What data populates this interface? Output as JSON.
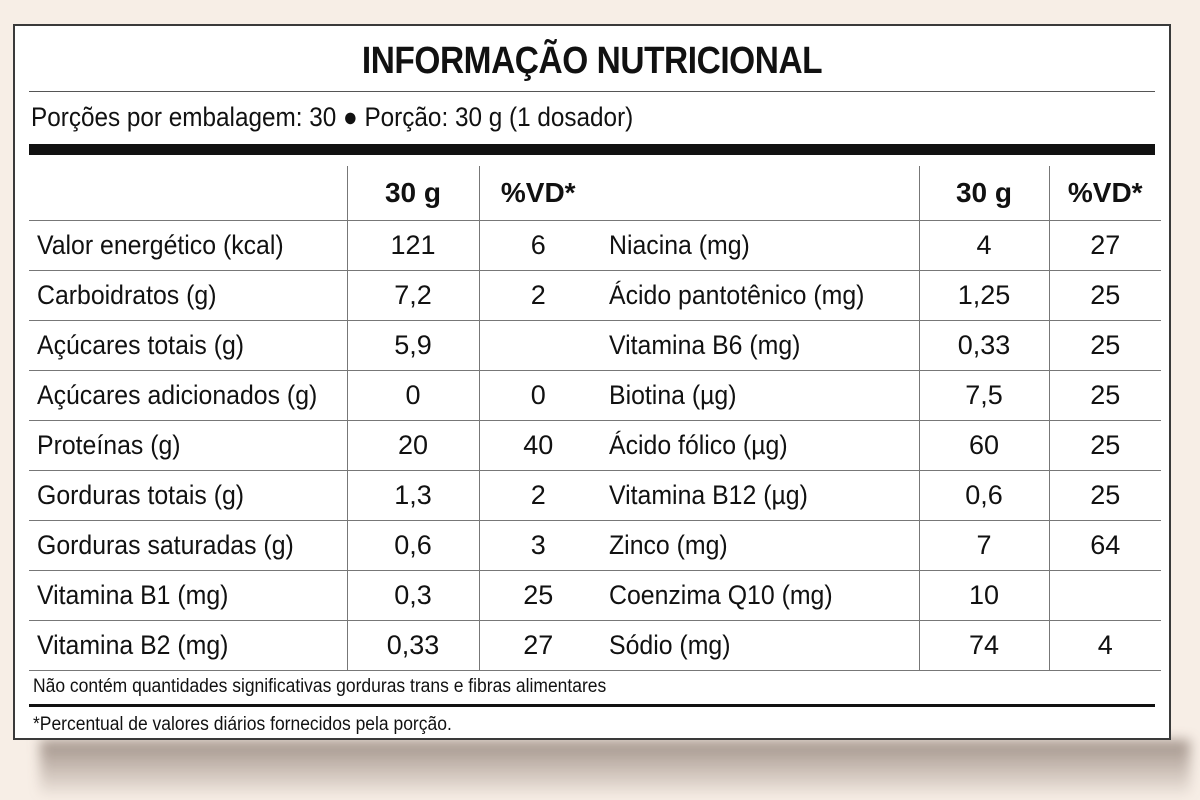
{
  "title": "INFORMAÇÃO NUTRICIONAL",
  "portion_info": "Porções por embalagem: 30 ● Porção: 30 g (1 dosador)",
  "header": {
    "amount": "30 g",
    "dv": "%VD*"
  },
  "left_rows": [
    {
      "name": "Valor energético (kcal)",
      "amount": "121",
      "dv": "6"
    },
    {
      "name": "Carboidratos (g)",
      "amount": "7,2",
      "dv": "2"
    },
    {
      "name": "Açúcares totais (g)",
      "amount": "5,9",
      "dv": ""
    },
    {
      "name": "Açúcares adicionados (g)",
      "amount": "0",
      "dv": "0"
    },
    {
      "name": "Proteínas (g)",
      "amount": "20",
      "dv": "40"
    },
    {
      "name": "Gorduras totais (g)",
      "amount": "1,3",
      "dv": "2"
    },
    {
      "name": "Gorduras saturadas (g)",
      "amount": "0,6",
      "dv": "3"
    },
    {
      "name": "Vitamina B1 (mg)",
      "amount": "0,3",
      "dv": "25"
    },
    {
      "name": "Vitamina B2 (mg)",
      "amount": "0,33",
      "dv": "27"
    }
  ],
  "right_rows": [
    {
      "name": "Niacina (mg)",
      "amount": "4",
      "dv": "27"
    },
    {
      "name": "Ácido pantotênico (mg)",
      "amount": "1,25",
      "dv": "25"
    },
    {
      "name": "Vitamina B6 (mg)",
      "amount": "0,33",
      "dv": "25"
    },
    {
      "name": "Biotina (µg)",
      "amount": "7,5",
      "dv": "25"
    },
    {
      "name": "Ácido fólico (µg)",
      "amount": "60",
      "dv": "25"
    },
    {
      "name": "Vitamina B12 (µg)",
      "amount": "0,6",
      "dv": "25"
    },
    {
      "name": "Zinco (mg)",
      "amount": "7",
      "dv": "64"
    },
    {
      "name": "Coenzima Q10 (mg)",
      "amount": "10",
      "dv": ""
    },
    {
      "name": "Sódio (mg)",
      "amount": "74",
      "dv": "4"
    }
  ],
  "note_trans": "Não contém quantidades significativas gorduras trans e fibras alimentares",
  "note_dv": "*Percentual de valores diários fornecidos pela porção."
}
